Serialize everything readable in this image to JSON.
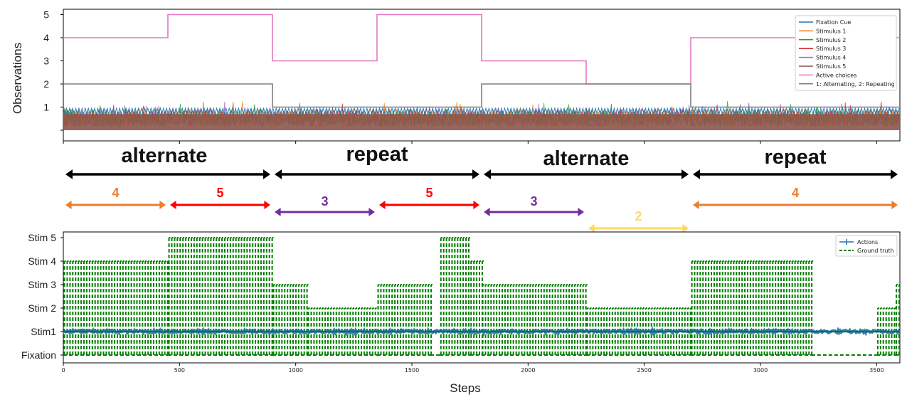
{
  "colors": {
    "fixation_cue": "#1f77b4",
    "stimulus_1": "#ff7f0e",
    "stimulus_2": "#2ca02c",
    "stimulus_3": "#d62728",
    "stimulus_4": "#9467bd",
    "stimulus_5": "#8c564b",
    "active_choices": "#e377c2",
    "mode": "#7f7f7f",
    "actions": "#1f77b4",
    "ground_truth": "#008000",
    "black_arrow": "#000000",
    "arrow_4": "#ed7d31",
    "arrow_5": "#ff0000",
    "arrow_3": "#7030a0",
    "arrow_2": "#ffd966"
  },
  "chart_data": [
    {
      "type": "line",
      "ylabel": "Observations",
      "xlim": [
        0,
        3600
      ],
      "yticks": [
        "1",
        "2",
        "3",
        "4",
        "5"
      ],
      "ylim": [
        -0.3,
        5.3
      ],
      "legend_position": "top-right",
      "series": [
        {
          "name": "Fixation Cue",
          "color_key": "fixation_cue",
          "description_range": [
            0,
            1
          ]
        },
        {
          "name": "Stimulus 1",
          "color_key": "stimulus_1",
          "description_range": [
            0,
            1
          ]
        },
        {
          "name": "Stimulus 2",
          "color_key": "stimulus_2",
          "description_range": [
            0,
            1
          ]
        },
        {
          "name": "Stimulus 3",
          "color_key": "stimulus_3",
          "description_range": [
            0,
            1
          ]
        },
        {
          "name": "Stimulus 4",
          "color_key": "stimulus_4",
          "description_range": [
            0,
            1
          ]
        },
        {
          "name": "Stimulus 5",
          "color_key": "stimulus_5",
          "description_range": [
            0,
            1
          ]
        },
        {
          "name": "Active choices",
          "color_key": "active_choices",
          "steps": [
            [
              0,
              4
            ],
            [
              450,
              5
            ],
            [
              900,
              3
            ],
            [
              1350,
              5
            ],
            [
              1800,
              3
            ],
            [
              2250,
              2
            ],
            [
              2700,
              4
            ],
            [
              3600,
              4
            ]
          ]
        },
        {
          "name": "1: Alternating, 2: Repeating",
          "color_key": "mode",
          "steps": [
            [
              0,
              2
            ],
            [
              900,
              1
            ],
            [
              1800,
              2
            ],
            [
              2700,
              1
            ],
            [
              3600,
              1
            ]
          ]
        }
      ]
    },
    {
      "type": "line",
      "xlabel": "Steps",
      "xlim": [
        0,
        3600
      ],
      "xticks": [
        0,
        500,
        1000,
        1500,
        2000,
        2500,
        3000,
        3500
      ],
      "yticks": [
        "Fixation",
        "Stim1",
        "Stim 2",
        "Stim 3",
        "Stim 4",
        "Stim 5"
      ],
      "ylim": [
        -0.1,
        5.1
      ],
      "legend_position": "top-right",
      "series": [
        {
          "name": "Actions",
          "color_key": "actions",
          "typical_value": 1
        },
        {
          "name": "Ground truth",
          "color_key": "ground_truth",
          "style": "dashed",
          "segments": [
            {
              "start": 0,
              "end": 450,
              "peak": 4,
              "alt": 3
            },
            {
              "start": 450,
              "end": 900,
              "peak": 5,
              "alt": 4
            },
            {
              "start": 900,
              "end": 1050,
              "peak": 3,
              "alt": 3
            },
            {
              "start": 1050,
              "end": 1350,
              "peak": 2,
              "alt": 2
            },
            {
              "start": 1350,
              "end": 1580,
              "peak": 3,
              "alt": 3
            },
            {
              "start": 1580,
              "end": 1620,
              "peak": 0,
              "alt": 0
            },
            {
              "start": 1620,
              "end": 1750,
              "peak": 5,
              "alt": 5
            },
            {
              "start": 1750,
              "end": 1800,
              "peak": 4,
              "alt": 4
            },
            {
              "start": 1800,
              "end": 2250,
              "peak": 3,
              "alt": 3
            },
            {
              "start": 2250,
              "end": 2700,
              "peak": 2,
              "alt": 2
            },
            {
              "start": 2700,
              "end": 3220,
              "peak": 4,
              "alt": 4
            },
            {
              "start": 3220,
              "end": 3500,
              "peak": 0,
              "alt": 0
            },
            {
              "start": 3500,
              "end": 3580,
              "peak": 2,
              "alt": 2
            },
            {
              "start": 3580,
              "end": 3600,
              "peak": 3,
              "alt": 3
            }
          ]
        }
      ]
    }
  ],
  "annotations": {
    "phases": [
      {
        "label": "alternate",
        "start": 0,
        "end": 900
      },
      {
        "label": "repeat",
        "start": 900,
        "end": 1800
      },
      {
        "label": "alternate",
        "start": 1800,
        "end": 2700
      },
      {
        "label": "repeat",
        "start": 2700,
        "end": 3600
      }
    ],
    "blocks": [
      {
        "label": "4",
        "start": 0,
        "end": 450,
        "color_key": "arrow_4",
        "row": 0
      },
      {
        "label": "5",
        "start": 450,
        "end": 900,
        "color_key": "arrow_5",
        "row": 0
      },
      {
        "label": "3",
        "start": 900,
        "end": 1350,
        "color_key": "arrow_3",
        "row": 1
      },
      {
        "label": "5",
        "start": 1350,
        "end": 1800,
        "color_key": "arrow_5",
        "row": 0
      },
      {
        "label": "3",
        "start": 1800,
        "end": 2250,
        "color_key": "arrow_3",
        "row": 1
      },
      {
        "label": "2",
        "start": 2250,
        "end": 2700,
        "color_key": "arrow_2",
        "row": 2
      },
      {
        "label": "4",
        "start": 2700,
        "end": 3600,
        "color_key": "arrow_4",
        "row": 0
      }
    ]
  }
}
